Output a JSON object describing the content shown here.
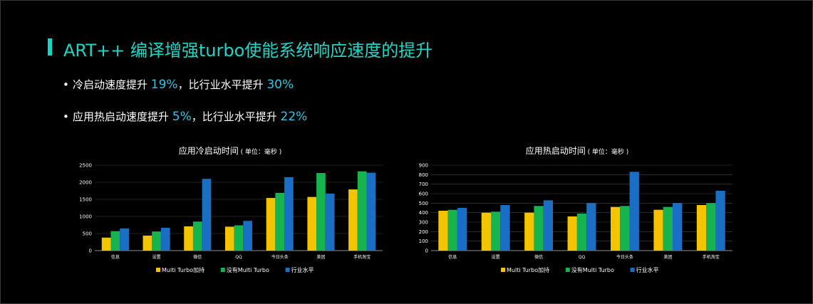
{
  "slide": {
    "title": "ART++ 编译增强turbo使能系统响应速度的提升",
    "bullets": [
      {
        "prefix": "冷启动速度提升 ",
        "v1": "19%",
        "mid": "，比行业水平提升 ",
        "v2": "30%"
      },
      {
        "prefix": "应用热启动速度提升 ",
        "v1": "5%",
        "mid": "，比行业水平提升 ",
        "v2": "22%"
      }
    ],
    "accent_color": "#19d3c5"
  },
  "chart_data": [
    {
      "type": "bar",
      "title": "应用冷启动时间",
      "title_unit": "( 单位：毫秒 )",
      "categories": [
        "信息",
        "设置",
        "微信",
        "QQ",
        "今日头条",
        "美团",
        "手机淘宝"
      ],
      "ylim": [
        0,
        2500
      ],
      "yticks": [
        0,
        500,
        1000,
        1500,
        2000,
        2500
      ],
      "grid": true,
      "legend_position": "bottom",
      "series": [
        {
          "name": "Multi Turbo加持",
          "color": "#f5c400",
          "values": [
            380,
            440,
            710,
            700,
            1540,
            1570,
            1790
          ]
        },
        {
          "name": "没有Multi Turbo",
          "color": "#16b34e",
          "values": [
            570,
            560,
            850,
            740,
            1690,
            2270,
            2320
          ]
        },
        {
          "name": "行业水平",
          "color": "#1a6fc4",
          "values": [
            650,
            670,
            2100,
            870,
            2150,
            1670,
            2280
          ]
        }
      ]
    },
    {
      "type": "bar",
      "title": "应用热启动时间",
      "title_unit": "( 单位：毫秒 )",
      "categories": [
        "信息",
        "设置",
        "微信",
        "QQ",
        "今日头条",
        "美团",
        "手机淘宝"
      ],
      "ylim": [
        0,
        900
      ],
      "yticks": [
        0,
        100,
        200,
        300,
        400,
        500,
        600,
        700,
        800,
        900
      ],
      "grid": true,
      "legend_position": "bottom",
      "series": [
        {
          "name": "Multi Turbo加持",
          "color": "#f5c400",
          "values": [
            420,
            400,
            400,
            360,
            460,
            430,
            480
          ]
        },
        {
          "name": "没有Multi Turbo",
          "color": "#16b34e",
          "values": [
            430,
            410,
            470,
            390,
            470,
            460,
            500
          ]
        },
        {
          "name": "行业水平",
          "color": "#1a6fc4",
          "values": [
            450,
            480,
            530,
            500,
            830,
            500,
            630
          ]
        }
      ]
    }
  ]
}
